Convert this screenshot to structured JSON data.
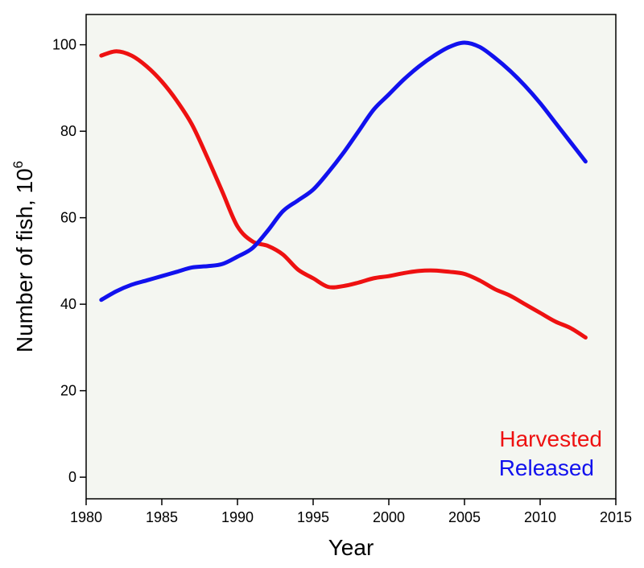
{
  "chart_data": {
    "type": "line",
    "title": "",
    "xlabel": "Year",
    "ylabel": "Number of fish, 10",
    "ylabel_superscript": "6",
    "xlim": [
      1980,
      2015
    ],
    "ylim": [
      -5,
      107
    ],
    "x_ticks": [
      1980,
      1985,
      1990,
      1995,
      2000,
      2005,
      2010,
      2015
    ],
    "y_ticks": [
      0,
      20,
      40,
      60,
      80,
      100
    ],
    "grid": false,
    "legend_position": "bottom-right",
    "background_color": "#f4f6f1",
    "series": [
      {
        "name": "Harvested",
        "color": "#ee1111",
        "x": [
          1981,
          1982,
          1983,
          1984,
          1985,
          1986,
          1987,
          1988,
          1989,
          1990,
          1991,
          1992,
          1993,
          1994,
          1995,
          1996,
          1997,
          1998,
          1999,
          2000,
          2001,
          2002,
          2003,
          2004,
          2005,
          2006,
          2007,
          2008,
          2009,
          2010,
          2011,
          2012,
          2013
        ],
        "y": [
          97.5,
          98.5,
          97.5,
          95,
          91.5,
          87,
          81.5,
          74,
          66,
          58,
          54.5,
          53.5,
          51.5,
          48,
          46,
          44,
          44.2,
          45,
          46,
          46.5,
          47.2,
          47.7,
          47.8,
          47.5,
          47,
          45.5,
          43.5,
          42,
          40,
          38,
          36,
          34.5,
          32.3
        ]
      },
      {
        "name": "Released",
        "color": "#1111ee",
        "x": [
          1981,
          1982,
          1983,
          1984,
          1985,
          1986,
          1987,
          1988,
          1989,
          1990,
          1991,
          1992,
          1993,
          1994,
          1995,
          1996,
          1997,
          1998,
          1999,
          2000,
          2001,
          2002,
          2003,
          2004,
          2005,
          2006,
          2007,
          2008,
          2009,
          2010,
          2011,
          2012,
          2013
        ],
        "y": [
          41,
          43,
          44.5,
          45.5,
          46.5,
          47.5,
          48.5,
          48.8,
          49.3,
          51,
          53,
          57,
          61.5,
          64,
          66.5,
          70.5,
          75,
          80,
          85,
          88.5,
          92,
          95,
          97.5,
          99.5,
          100.5,
          99.5,
          97,
          94,
          90.5,
          86.5,
          82,
          77.5,
          73
        ]
      }
    ]
  }
}
